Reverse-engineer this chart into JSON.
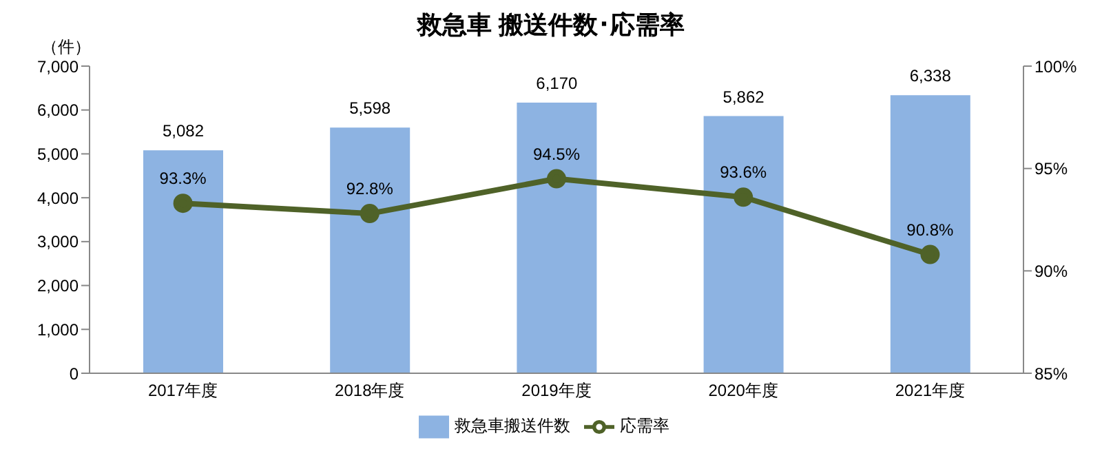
{
  "chart_data": {
    "type": "bar",
    "title": "救急車 搬送件数･応需率",
    "ylabel": "（件）",
    "categories": [
      "2017年度",
      "2018年度",
      "2019年度",
      "2020年度",
      "2021年度"
    ],
    "series": [
      {
        "name": "救急車搬送件数",
        "color": "#8db3e2",
        "values": [
          5082,
          5598,
          6170,
          5862,
          6338
        ],
        "value_labels": [
          "5,082",
          "5,598",
          "6,170",
          "5,862",
          "6,338"
        ]
      },
      {
        "name": "応需率",
        "type": "line",
        "axis": "y2",
        "color": "#4f6228",
        "marker": "circle",
        "line_style": "solid",
        "values": [
          93.3,
          92.8,
          94.5,
          93.6,
          90.8
        ],
        "value_labels": [
          "93.3%",
          "92.8%",
          "94.5%",
          "93.6%",
          "90.8%"
        ]
      }
    ],
    "ylim": [
      0,
      7000
    ],
    "yticks": [
      0,
      {
        "value": 1000,
        "label": "1,000"
      },
      {
        "value": 2000,
        "label": "2,000"
      },
      {
        "value": 3000,
        "label": "3,000"
      },
      {
        "value": 4000,
        "label": "4,000"
      },
      {
        "value": 5000,
        "label": "5,000"
      },
      {
        "value": 6000,
        "label": "6,000"
      },
      {
        "value": 7000,
        "label": "7,000"
      }
    ],
    "y2lim": [
      85,
      100
    ],
    "y2ticks": [
      {
        "value": 85,
        "label": "85%"
      },
      {
        "value": 90,
        "label": "90%"
      },
      {
        "value": 95,
        "label": "95%"
      },
      {
        "value": 100,
        "label": "100%"
      }
    ],
    "grid": false,
    "legend": "bottom"
  }
}
